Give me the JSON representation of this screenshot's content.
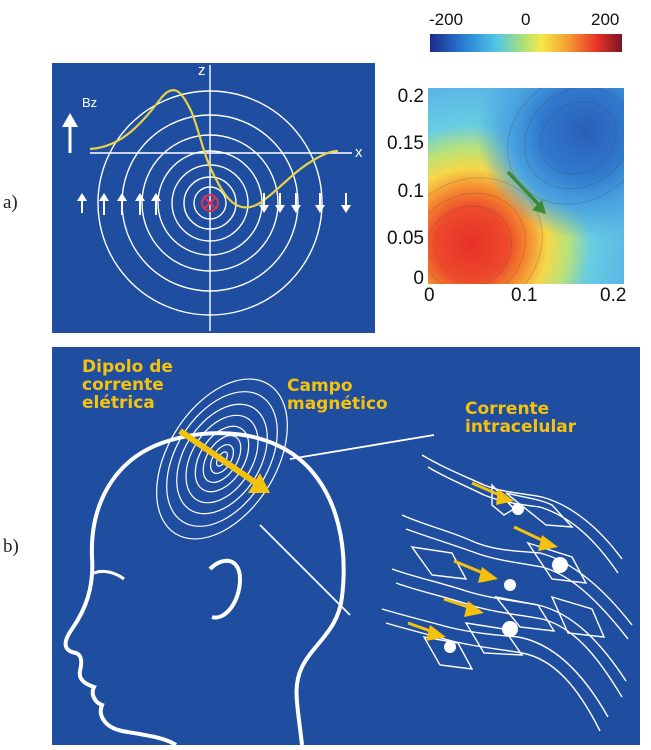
{
  "panel_a": {
    "label": "a)",
    "axis_z": "z",
    "axis_x": "x",
    "bz_label": "Bz",
    "colorbar": {
      "ticks": [
        "-200",
        "0",
        "200"
      ],
      "colors": [
        "#1a2a8c",
        "#2a7fd6",
        "#54c7e6",
        "#a8e07a",
        "#f5e84a",
        "#f59b32",
        "#e8322a",
        "#7a1420"
      ]
    },
    "heatmap": {
      "x_ticks": [
        "0",
        "0.1",
        "0.2"
      ],
      "y_ticks": [
        "0.2",
        "0.15",
        "0.1",
        "0.05",
        "0"
      ],
      "x_range": [
        0,
        0.2
      ],
      "y_range": [
        0,
        0.2
      ],
      "arrow_color": "#3a8a3a"
    }
  },
  "panel_b": {
    "label": "b)",
    "dipole_label": [
      "Dipolo de",
      "corrente",
      "elétrica"
    ],
    "field_label": [
      "Campo",
      "magnético"
    ],
    "current_label": [
      "Corrente",
      "intracelular"
    ],
    "background_color": "#1f4ea1",
    "text_color": "#f4c20d"
  }
}
